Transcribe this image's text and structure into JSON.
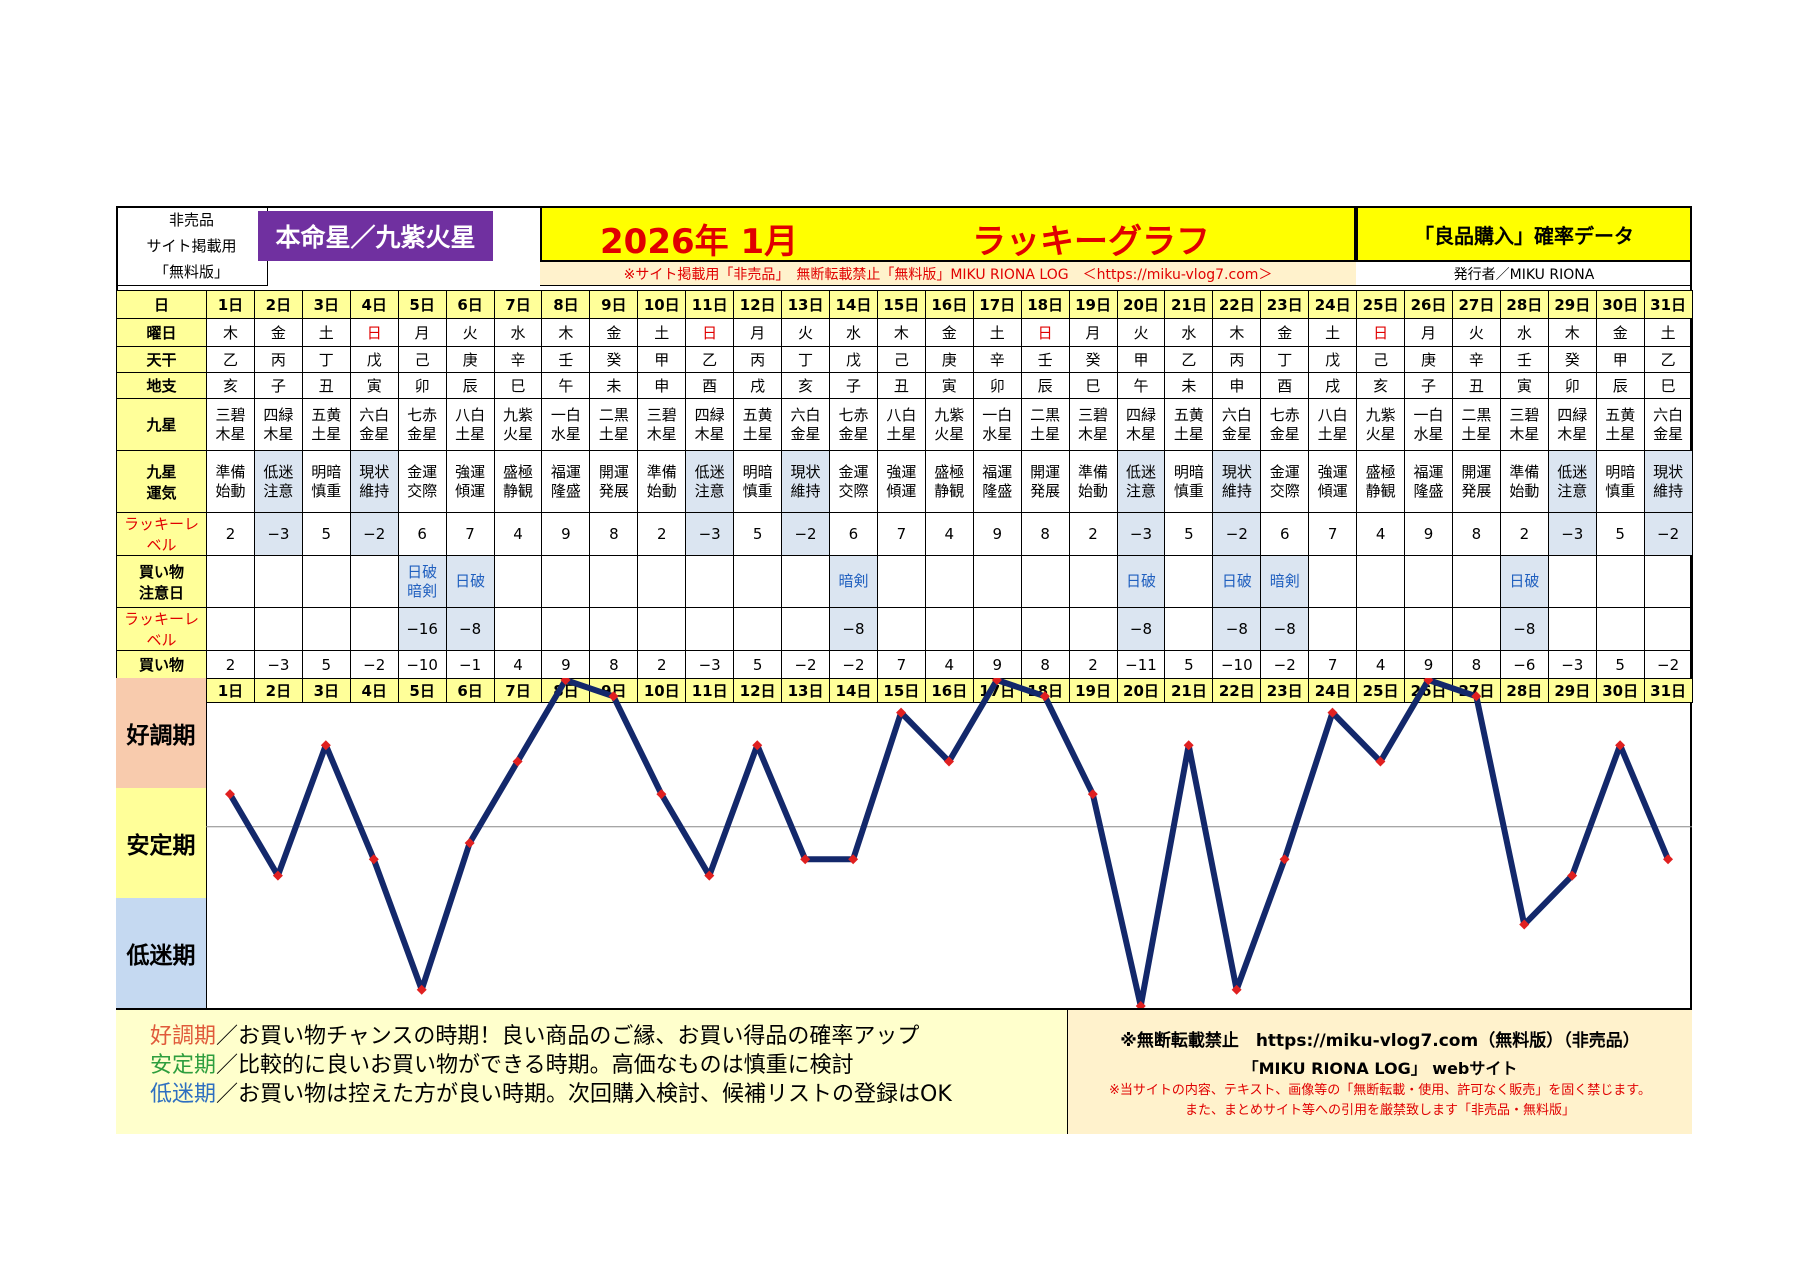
{
  "header": {
    "left_lines": [
      "非売品",
      "サイト掲載用",
      "「無料版」"
    ],
    "honmei": "本命星／九紫火星",
    "year_month": "2026年 1月",
    "graph_title": "ラッキーグラフ",
    "right_title": "「良品購入」確率データ",
    "notice": "※サイト掲載用「非売品」　無断転載禁止「無料版」MIKU RIONA LOG　＜https://miku-vlog7.com＞",
    "publisher": "発行者／MIKU RIONA"
  },
  "row_labels": {
    "day": "日",
    "weekday": "曜日",
    "tenkan": "天干",
    "chishi": "地支",
    "kyusei": "九星",
    "kyusei_unki": [
      "九星",
      "運気"
    ],
    "lucky": "ラッキーレベル",
    "caution": [
      "買い物",
      "注意日"
    ],
    "lucky2": "ラッキーレベル",
    "total": [
      "買い物",
      "総合運"
    ]
  },
  "days": [
    "1日",
    "2日",
    "3日",
    "4日",
    "5日",
    "6日",
    "7日",
    "8日",
    "9日",
    "10日",
    "11日",
    "12日",
    "13日",
    "14日",
    "15日",
    "16日",
    "17日",
    "18日",
    "19日",
    "20日",
    "21日",
    "22日",
    "23日",
    "24日",
    "25日",
    "26日",
    "27日",
    "28日",
    "29日",
    "30日",
    "31日"
  ],
  "weekdays": [
    "木",
    "金",
    "土",
    "日",
    "月",
    "火",
    "水",
    "木",
    "金",
    "土",
    "日",
    "月",
    "火",
    "水",
    "木",
    "金",
    "土",
    "日",
    "月",
    "火",
    "水",
    "木",
    "金",
    "土",
    "日",
    "月",
    "火",
    "水",
    "木",
    "金",
    "土"
  ],
  "tenkan": [
    "乙",
    "丙",
    "丁",
    "戊",
    "己",
    "庚",
    "辛",
    "壬",
    "癸",
    "甲",
    "乙",
    "丙",
    "丁",
    "戊",
    "己",
    "庚",
    "辛",
    "壬",
    "癸",
    "甲",
    "乙",
    "丙",
    "丁",
    "戊",
    "己",
    "庚",
    "辛",
    "壬",
    "癸",
    "甲",
    "乙"
  ],
  "chishi": [
    "亥",
    "子",
    "丑",
    "寅",
    "卯",
    "辰",
    "巳",
    "午",
    "未",
    "申",
    "酉",
    "戌",
    "亥",
    "子",
    "丑",
    "寅",
    "卯",
    "辰",
    "巳",
    "午",
    "未",
    "申",
    "酉",
    "戌",
    "亥",
    "子",
    "丑",
    "寅",
    "卯",
    "辰",
    "巳"
  ],
  "kyusei": [
    [
      "三碧",
      "木星"
    ],
    [
      "四緑",
      "木星"
    ],
    [
      "五黄",
      "土星"
    ],
    [
      "六白",
      "金星"
    ],
    [
      "七赤",
      "金星"
    ],
    [
      "八白",
      "土星"
    ],
    [
      "九紫",
      "火星"
    ],
    [
      "一白",
      "水星"
    ],
    [
      "二黒",
      "土星"
    ],
    [
      "三碧",
      "木星"
    ],
    [
      "四緑",
      "木星"
    ],
    [
      "五黄",
      "土星"
    ],
    [
      "六白",
      "金星"
    ],
    [
      "七赤",
      "金星"
    ],
    [
      "八白",
      "土星"
    ],
    [
      "九紫",
      "火星"
    ],
    [
      "一白",
      "水星"
    ],
    [
      "二黒",
      "土星"
    ],
    [
      "三碧",
      "木星"
    ],
    [
      "四緑",
      "木星"
    ],
    [
      "五黄",
      "土星"
    ],
    [
      "六白",
      "金星"
    ],
    [
      "七赤",
      "金星"
    ],
    [
      "八白",
      "土星"
    ],
    [
      "九紫",
      "火星"
    ],
    [
      "一白",
      "水星"
    ],
    [
      "二黒",
      "土星"
    ],
    [
      "三碧",
      "木星"
    ],
    [
      "四緑",
      "木星"
    ],
    [
      "五黄",
      "土星"
    ],
    [
      "六白",
      "金星"
    ]
  ],
  "unki": [
    [
      "準備",
      "始動"
    ],
    [
      "低迷",
      "注意"
    ],
    [
      "明暗",
      "慎重"
    ],
    [
      "現状",
      "維持"
    ],
    [
      "金運",
      "交際"
    ],
    [
      "強運",
      "傾運"
    ],
    [
      "盛極",
      "静観"
    ],
    [
      "福運",
      "隆盛"
    ],
    [
      "開運",
      "発展"
    ],
    [
      "準備",
      "始動"
    ],
    [
      "低迷",
      "注意"
    ],
    [
      "明暗",
      "慎重"
    ],
    [
      "現状",
      "維持"
    ],
    [
      "金運",
      "交際"
    ],
    [
      "強運",
      "傾運"
    ],
    [
      "盛極",
      "静観"
    ],
    [
      "福運",
      "隆盛"
    ],
    [
      "開運",
      "発展"
    ],
    [
      "準備",
      "始動"
    ],
    [
      "低迷",
      "注意"
    ],
    [
      "明暗",
      "慎重"
    ],
    [
      "現状",
      "維持"
    ],
    [
      "金運",
      "交際"
    ],
    [
      "強運",
      "傾運"
    ],
    [
      "盛極",
      "静観"
    ],
    [
      "福運",
      "隆盛"
    ],
    [
      "開運",
      "発展"
    ],
    [
      "準備",
      "始動"
    ],
    [
      "低迷",
      "注意"
    ],
    [
      "明暗",
      "慎重"
    ],
    [
      "現状",
      "維持"
    ]
  ],
  "lucky_level": [
    "2",
    "−3",
    "5",
    "−2",
    "6",
    "7",
    "4",
    "9",
    "8",
    "2",
    "−3",
    "5",
    "−2",
    "6",
    "7",
    "4",
    "9",
    "8",
    "2",
    "−3",
    "5",
    "−2",
    "6",
    "7",
    "4",
    "9",
    "8",
    "2",
    "−3",
    "5",
    "−2"
  ],
  "caution": [
    [],
    [],
    [],
    [],
    [
      "日破",
      "暗剣"
    ],
    [
      "日破"
    ],
    [],
    [],
    [],
    [],
    [],
    [],
    [],
    [
      "暗剣"
    ],
    [],
    [],
    [],
    [],
    [],
    [
      "日破"
    ],
    [],
    [
      "日破"
    ],
    [
      "暗剣"
    ],
    [],
    [],
    [],
    [],
    [
      "日破"
    ],
    [],
    [],
    []
  ],
  "caution_level": [
    "",
    "",
    "",
    "",
    "−16",
    "−8",
    "",
    "",
    "",
    "",
    "",
    "",
    "",
    "−8",
    "",
    "",
    "",
    "",
    "",
    "−8",
    "",
    "−8",
    "−8",
    "",
    "",
    "",
    "",
    "−8",
    "",
    "",
    ""
  ],
  "total": [
    "2",
    "−3",
    "5",
    "−2",
    "−10",
    "−1",
    "4",
    "9",
    "8",
    "2",
    "−3",
    "5",
    "−2",
    "−2",
    "7",
    "4",
    "9",
    "8",
    "2",
    "−11",
    "5",
    "−10",
    "−2",
    "7",
    "4",
    "9",
    "8",
    "−6",
    "−3",
    "5",
    "−2"
  ],
  "plot_labels": [
    "好調期",
    "安定期",
    "低迷期"
  ],
  "chart_data": {
    "type": "line",
    "title": "ラッキーグラフ",
    "x": [
      "1日",
      "2日",
      "3日",
      "4日",
      "5日",
      "6日",
      "7日",
      "8日",
      "9日",
      "10日",
      "11日",
      "12日",
      "13日",
      "14日",
      "15日",
      "16日",
      "17日",
      "18日",
      "19日",
      "20日",
      "21日",
      "22日",
      "23日",
      "24日",
      "25日",
      "26日",
      "27日",
      "28日",
      "29日",
      "30日",
      "31日"
    ],
    "series": [
      {
        "values": [
          2,
          -3,
          5,
          -2,
          -10,
          -1,
          4,
          9,
          8,
          2,
          -3,
          5,
          -2,
          -2,
          7,
          4,
          9,
          8,
          2,
          -11,
          5,
          -10,
          -2,
          7,
          4,
          9,
          8,
          -6,
          -3,
          5,
          -2
        ]
      }
    ],
    "ylim": [
      -11,
      9
    ],
    "bands": [
      "好調期",
      "安定期",
      "低迷期"
    ],
    "line_color": "#13286b",
    "marker_color": "#e02020"
  },
  "legend": [
    {
      "term": "好調期",
      "text": "／お買い物チャンスの時期！良い商品のご縁、お買い得品の確率アップ"
    },
    {
      "term": "安定期",
      "text": "／比較的に良いお買い物ができる時期。高価なものは慎重に検討"
    },
    {
      "term": "低迷期",
      "text": "／お買い物は控えた方が良い時期。次回購入検討、候補リストの登録はOK"
    }
  ],
  "copyright": {
    "line1": "※無断転載禁止　https://miku-vlog7.com（無料版）（非売品）",
    "line2": "「MIKU RIONA LOG」 webサイト",
    "line3": "※当サイトの内容、テキスト、画像等の「無断転載・使用、許可なく販売」を固く禁じます。",
    "line4": "また、まとめサイト等への引用を厳禁致します「非売品・無料版」"
  },
  "colors": {
    "title": "#e00000",
    "honmei_bg": "#7030a0",
    "header_bg": "#ffff00",
    "label_bg": "#ffff99",
    "highlight": "#dbe5f1"
  }
}
